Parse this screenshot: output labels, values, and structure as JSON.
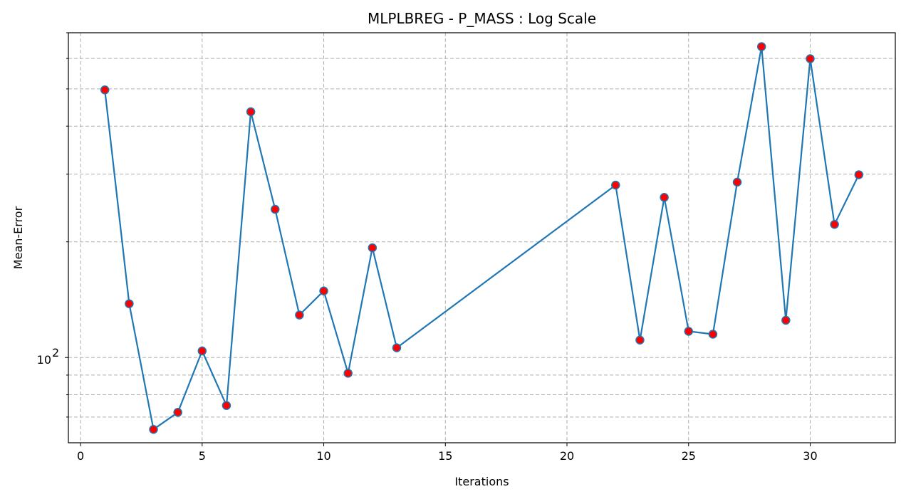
{
  "chart_data": {
    "type": "line",
    "title": "MLPLBREG - P_MASS : Log Scale",
    "xlabel": "Iterations",
    "ylabel": "Mean-Error",
    "xlim": [
      -0.5,
      33.5
    ],
    "ylim": [
      60,
      700
    ],
    "yscale": "log",
    "grid": true,
    "x_ticks": [
      0,
      5,
      10,
      15,
      20,
      25,
      30
    ],
    "y_ticks": [
      {
        "value": 100,
        "label": "10",
        "exp": "2"
      }
    ],
    "y_minor_ticks": [
      70,
      80,
      90,
      200,
      300,
      400,
      500,
      600,
      700
    ],
    "series": [
      {
        "color": "#1f77b4",
        "marker_color": "#ff0000",
        "x": [
          1,
          2,
          3,
          4,
          5,
          6,
          7,
          8,
          9,
          10,
          11,
          12,
          13,
          22,
          23,
          24,
          25,
          26,
          27,
          28,
          29,
          30,
          31,
          32
        ],
        "y": [
          497,
          138,
          65,
          72,
          104,
          75,
          436,
          243,
          129,
          149,
          91,
          193,
          106,
          281,
          111,
          261,
          117,
          115,
          286,
          644,
          125,
          599,
          222,
          299
        ]
      }
    ]
  }
}
